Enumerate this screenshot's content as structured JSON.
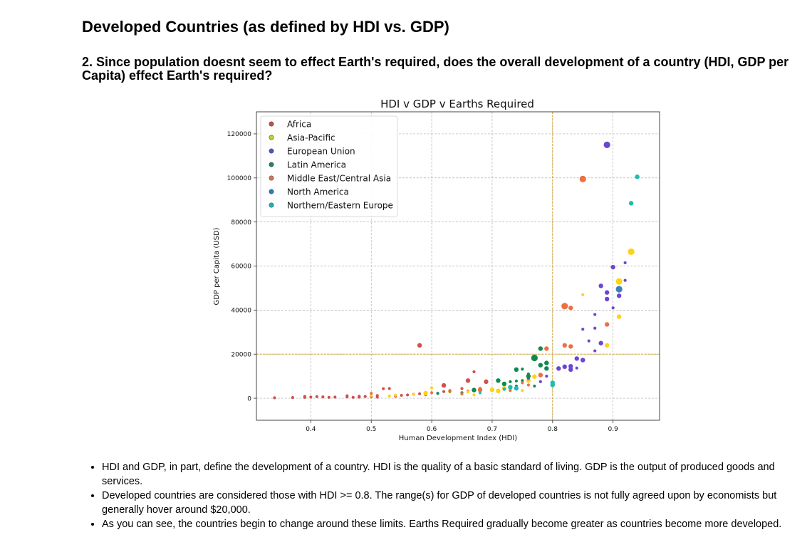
{
  "header": {
    "title": "Developed Countries (as defined by HDI vs. GDP)",
    "question": "2. Since population doesnt seem to effect Earth's required, does the overall development of a country (HDI, GDP per Capita) effect Earth's required?"
  },
  "bullets": [
    "HDI and GDP, in part, define the development of a country. HDI is the quality of a basic standard of living. GDP is the output of produced goods and services.",
    "Developed countries are considered those with HDI >= 0.8. The range(s) for GDP of developed countries is not fully agreed upon by economists but generally hover around $20,000.",
    "As you can see, the countries begin to change around these limits. Earths Required gradually become greater as countries become more developed."
  ],
  "chart_data": {
    "type": "scatter",
    "title": "HDI v GDP v Earths Required",
    "xlabel": "Human Development Index (HDI)",
    "ylabel": "GDP per Capita (USD)",
    "xlim": [
      0.31,
      0.977
    ],
    "ylim": [
      -10000,
      130000
    ],
    "xticks": [
      0.4,
      0.5,
      0.6,
      0.7,
      0.8,
      0.9
    ],
    "xtick_labels": [
      "0.4",
      "0.5",
      "0.6",
      "0.7",
      "0.8",
      "0.9"
    ],
    "yticks": [
      0,
      20000,
      40000,
      60000,
      80000,
      100000,
      120000
    ],
    "ytick_labels": [
      "0",
      "20000",
      "40000",
      "60000",
      "80000",
      "100000",
      "120000"
    ],
    "grid": true,
    "legend_position": "top-left",
    "reference_lines": {
      "x": 0.8,
      "y": 20000,
      "color": "#d4a017"
    },
    "series": [
      {
        "name": "Africa",
        "legend_color": "#c44e52",
        "points": [
          [
            0.34,
            200,
            1
          ],
          [
            0.37,
            300,
            1
          ],
          [
            0.39,
            800,
            1
          ],
          [
            0.39,
            400,
            1
          ],
          [
            0.4,
            500,
            1
          ],
          [
            0.41,
            700,
            1
          ],
          [
            0.42,
            600,
            1
          ],
          [
            0.43,
            400,
            1
          ],
          [
            0.44,
            500,
            1
          ],
          [
            0.46,
            1100,
            1
          ],
          [
            0.46,
            600,
            1
          ],
          [
            0.47,
            400,
            1
          ],
          [
            0.48,
            900,
            1
          ],
          [
            0.48,
            500,
            1
          ],
          [
            0.49,
            800,
            1
          ],
          [
            0.5,
            700,
            1
          ],
          [
            0.51,
            1200,
            1
          ],
          [
            0.51,
            500,
            1
          ],
          [
            0.52,
            4300,
            1
          ],
          [
            0.53,
            4400,
            1
          ],
          [
            0.54,
            900,
            1
          ],
          [
            0.55,
            1300,
            1
          ],
          [
            0.56,
            1500,
            1
          ],
          [
            0.57,
            1800,
            1
          ],
          [
            0.58,
            24000,
            2
          ],
          [
            0.58,
            2000,
            1
          ],
          [
            0.59,
            1600,
            1
          ],
          [
            0.62,
            5800,
            2
          ],
          [
            0.62,
            3000,
            1
          ],
          [
            0.63,
            3300,
            1
          ],
          [
            0.65,
            4400,
            1
          ],
          [
            0.66,
            3200,
            1
          ],
          [
            0.66,
            8000,
            2
          ],
          [
            0.67,
            12000,
            1
          ],
          [
            0.69,
            7500,
            2
          ],
          [
            0.7,
            3700,
            1
          ]
        ]
      },
      {
        "name": "Asia-Pacific",
        "legend_color": "#b5d333",
        "points": [
          [
            0.5,
            1200,
            1
          ],
          [
            0.53,
            1000,
            1
          ],
          [
            0.54,
            1400,
            1
          ],
          [
            0.57,
            1800,
            1
          ],
          [
            0.59,
            2300,
            2
          ],
          [
            0.6,
            4700,
            1
          ],
          [
            0.63,
            2800,
            1
          ],
          [
            0.65,
            1800,
            1
          ],
          [
            0.66,
            2900,
            1
          ],
          [
            0.67,
            1500,
            1
          ],
          [
            0.7,
            3800,
            2
          ],
          [
            0.71,
            3300,
            2
          ],
          [
            0.72,
            4500,
            2
          ],
          [
            0.73,
            3800,
            1
          ],
          [
            0.75,
            3500,
            1
          ],
          [
            0.76,
            8000,
            2
          ],
          [
            0.77,
            9800,
            2
          ],
          [
            0.85,
            47000,
            1
          ],
          [
            0.89,
            24000,
            2
          ],
          [
            0.91,
            53000,
            3
          ],
          [
            0.91,
            37000,
            2
          ],
          [
            0.93,
            66500,
            3
          ]
        ]
      },
      {
        "name": "European Union",
        "legend_color": "#4a55c8",
        "points": [
          [
            0.76,
            9000,
            1
          ],
          [
            0.78,
            7500,
            1
          ],
          [
            0.79,
            10000,
            1
          ],
          [
            0.81,
            13500,
            2
          ],
          [
            0.82,
            14300,
            2
          ],
          [
            0.83,
            13000,
            2
          ],
          [
            0.83,
            14500,
            2
          ],
          [
            0.84,
            18000,
            2
          ],
          [
            0.84,
            13700,
            1
          ],
          [
            0.85,
            17300,
            2
          ],
          [
            0.85,
            31300,
            1
          ],
          [
            0.86,
            26000,
            1
          ],
          [
            0.87,
            21500,
            1
          ],
          [
            0.87,
            31800,
            1
          ],
          [
            0.87,
            38000,
            1
          ],
          [
            0.88,
            51000,
            2
          ],
          [
            0.88,
            25000,
            2
          ],
          [
            0.89,
            48000,
            2
          ],
          [
            0.89,
            45000,
            2
          ],
          [
            0.89,
            115000,
            3
          ],
          [
            0.9,
            59500,
            2
          ],
          [
            0.9,
            41000,
            1
          ],
          [
            0.91,
            46500,
            2
          ],
          [
            0.92,
            53500,
            1
          ],
          [
            0.92,
            61500,
            1
          ]
        ]
      },
      {
        "name": "Latin America",
        "legend_color": "#148a5c",
        "points": [
          [
            0.61,
            2200,
            1
          ],
          [
            0.63,
            3200,
            1
          ],
          [
            0.65,
            2500,
            1
          ],
          [
            0.67,
            3700,
            2
          ],
          [
            0.71,
            8000,
            2
          ],
          [
            0.72,
            6500,
            2
          ],
          [
            0.73,
            7500,
            1
          ],
          [
            0.74,
            7800,
            1
          ],
          [
            0.74,
            5500,
            1
          ],
          [
            0.74,
            13000,
            2
          ],
          [
            0.75,
            13200,
            1
          ],
          [
            0.75,
            8000,
            1
          ],
          [
            0.76,
            10000,
            2
          ],
          [
            0.76,
            11000,
            1
          ],
          [
            0.77,
            18300,
            3
          ],
          [
            0.77,
            5500,
            1
          ],
          [
            0.78,
            15000,
            2
          ],
          [
            0.78,
            22500,
            2
          ],
          [
            0.79,
            13500,
            2
          ],
          [
            0.79,
            16000,
            2
          ]
        ]
      },
      {
        "name": "Middle East/Central Asia",
        "legend_color": "#e3724b",
        "points": [
          [
            0.5,
            2200,
            1
          ],
          [
            0.6,
            2500,
            1
          ],
          [
            0.63,
            3500,
            1
          ],
          [
            0.65,
            2000,
            1
          ],
          [
            0.68,
            3800,
            2
          ],
          [
            0.68,
            4500,
            1
          ],
          [
            0.72,
            4200,
            1
          ],
          [
            0.73,
            3500,
            1
          ],
          [
            0.75,
            7000,
            1
          ],
          [
            0.76,
            6000,
            1
          ],
          [
            0.78,
            10500,
            2
          ],
          [
            0.79,
            22500,
            2
          ],
          [
            0.82,
            41800,
            3
          ],
          [
            0.82,
            24000,
            2
          ],
          [
            0.83,
            23500,
            2
          ],
          [
            0.83,
            41000,
            2
          ],
          [
            0.85,
            99500,
            3
          ],
          [
            0.89,
            33500,
            2
          ]
        ]
      },
      {
        "name": "North America",
        "legend_color": "#2f79b7",
        "points": [
          [
            0.91,
            49500,
            3
          ]
        ]
      },
      {
        "name": "Northern/Eastern Europe",
        "legend_color": "#20b2b2",
        "points": [
          [
            0.68,
            2500,
            1
          ],
          [
            0.72,
            4000,
            1
          ],
          [
            0.73,
            5000,
            2
          ],
          [
            0.74,
            4500,
            2
          ],
          [
            0.8,
            7000,
            2
          ],
          [
            0.8,
            6000,
            2
          ],
          [
            0.93,
            88500,
            2
          ],
          [
            0.94,
            100500,
            2
          ]
        ]
      }
    ]
  }
}
